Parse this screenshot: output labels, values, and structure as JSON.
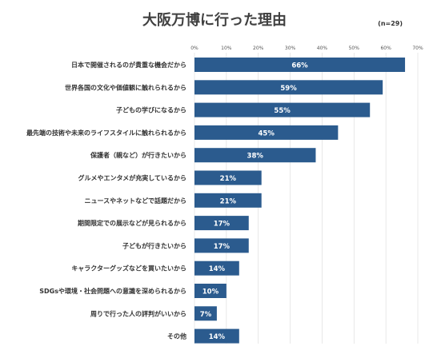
{
  "chart_data": {
    "type": "bar",
    "orientation": "horizontal",
    "title": "大阪万博に行った理由",
    "note": "(n=29)",
    "categories": [
      "日本で開催されるのが貴重な機会だから",
      "世界各国の文化や価値観に触れられるから",
      "子どもの学びになるから",
      "最先端の技術や未来のライフスタイルに触れられるから",
      "保護者（親など）が行きたいから",
      "グルメやエンタメが充実しているから",
      "ニュースやネットなどで話題だから",
      "期間限定での展示などが見られるから",
      "子どもが行きたいから",
      "キャラクターグッズなどを買いたいから",
      "SDGsや環境・社会問題への意識を深められるから",
      "周りで行った人の評判がいいから",
      "その他"
    ],
    "values": [
      66,
      59,
      55,
      45,
      38,
      21,
      21,
      17,
      17,
      14,
      10,
      7,
      14
    ],
    "value_labels": [
      "66%",
      "59%",
      "55%",
      "45%",
      "38%",
      "21%",
      "21%",
      "17%",
      "17%",
      "14%",
      "10%",
      "7%",
      "14%"
    ],
    "xlim": [
      0,
      70
    ],
    "x_ticks": [
      0,
      10,
      20,
      30,
      40,
      50,
      60,
      70
    ],
    "x_tick_labels": [
      "0%",
      "10%",
      "20%",
      "30%",
      "40%",
      "50%",
      "60%",
      "70%"
    ],
    "axis_position": "top",
    "grid": true,
    "bar_color": "#2b5b8e",
    "value_label_color": "#ffffff"
  }
}
